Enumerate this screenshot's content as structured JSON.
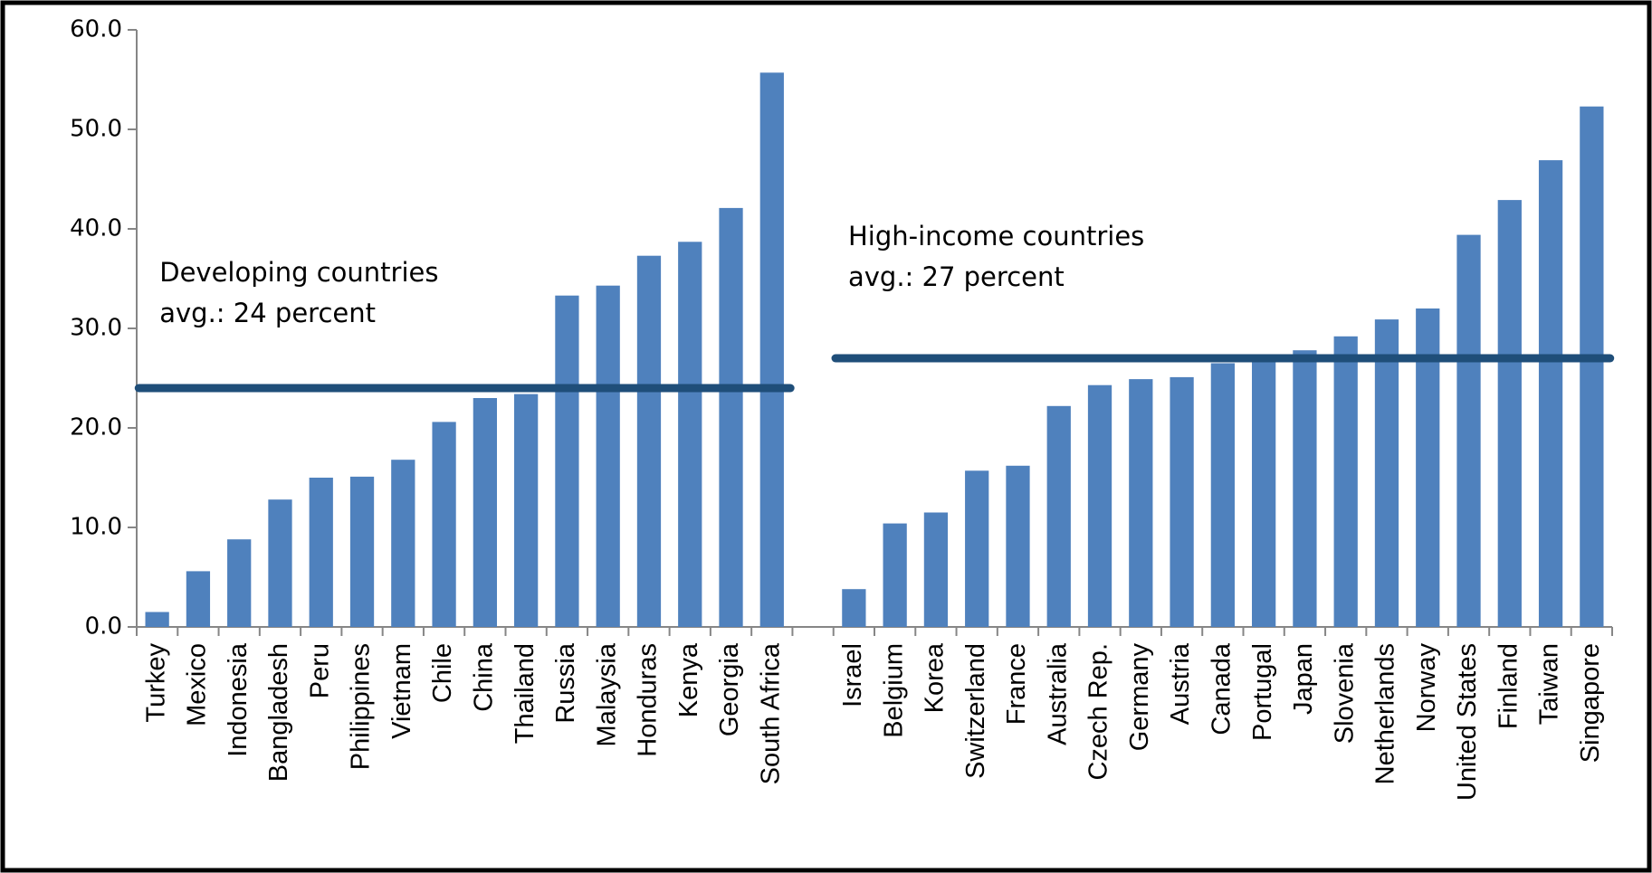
{
  "chart_data": {
    "type": "bar",
    "color": "#4f81bd",
    "categories": [
      "Turkey",
      "Mexico",
      "Indonesia",
      "Bangladesh",
      "Peru",
      "Philippines",
      "Vietnam",
      "Chile",
      "China",
      "Thailand",
      "Russia",
      "Malaysia",
      "Honduras",
      "Kenya",
      "Georgia",
      "South Africa",
      null,
      "Israel",
      "Belgium",
      "Korea",
      "Switzerland",
      "France",
      "Australia",
      "Czech Rep.",
      "Germany",
      "Austria",
      "Canada",
      "Portugal",
      "Japan",
      "Slovenia",
      "Netherlands",
      "Norway",
      "United States",
      "Finland",
      "Taiwan",
      "Singapore"
    ],
    "values": [
      1.5,
      5.6,
      8.8,
      12.8,
      15.0,
      15.1,
      16.8,
      20.6,
      23.0,
      23.4,
      33.3,
      34.3,
      37.3,
      38.7,
      42.1,
      55.7,
      null,
      3.8,
      10.4,
      11.5,
      15.7,
      16.2,
      22.2,
      24.3,
      24.9,
      25.1,
      26.5,
      26.8,
      27.8,
      29.2,
      30.9,
      32.0,
      39.4,
      42.9,
      46.9,
      52.3
    ],
    "ylim": [
      0,
      60
    ],
    "yticks": [
      {
        "value": 0,
        "label": "0.0"
      },
      {
        "value": 10,
        "label": "10.0"
      },
      {
        "value": 20,
        "label": "20.0"
      },
      {
        "value": 30,
        "label": "30.0"
      },
      {
        "value": 40,
        "label": "40.0"
      },
      {
        "value": 50,
        "label": "50.0"
      },
      {
        "value": 60,
        "label": "60.0"
      }
    ],
    "reference_lines": [
      {
        "text": [
          "Developing countries",
          "avg.: 24 percent"
        ],
        "value": 24,
        "color": "#1f4e79",
        "from": "Turkey",
        "to": "South Africa"
      },
      {
        "text": [
          "High-income countries",
          "avg.: 27 percent"
        ],
        "value": 27,
        "color": "#1f4e79",
        "from": "Israel",
        "to": "Singapore"
      }
    ]
  }
}
